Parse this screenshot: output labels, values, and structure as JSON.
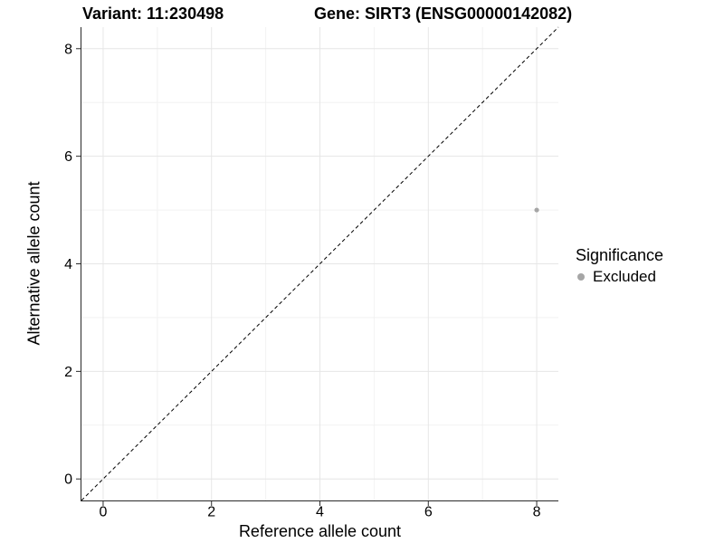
{
  "chart_data": {
    "type": "scatter",
    "title_left": "Variant: 11:230498",
    "title_right": "Gene: SIRT3 (ENSG00000142082)",
    "xlabel": "Reference allele count",
    "ylabel": "Alternative allele count",
    "xlim": [
      -0.4,
      8.4
    ],
    "ylim": [
      -0.4,
      8.4
    ],
    "xticks": [
      0,
      2,
      4,
      6,
      8
    ],
    "yticks": [
      0,
      2,
      4,
      6,
      8
    ],
    "minor_xticks": [
      1,
      3,
      5,
      7
    ],
    "minor_yticks": [
      1,
      3,
      5,
      7
    ],
    "grid": true,
    "reference_line": {
      "kind": "identity",
      "style": "dashed",
      "color": "#000000"
    },
    "points": [
      {
        "x": 8,
        "y": 5,
        "significance": "Excluded",
        "color": "#a6a6a6",
        "radius": 2.6
      }
    ],
    "legend": {
      "title": "Significance",
      "position": "right",
      "items": [
        {
          "label": "Excluded",
          "color": "#a6a6a6",
          "icon": "point-icon"
        }
      ]
    },
    "colors": {
      "major_grid": "#e6e6e6",
      "minor_grid": "#f2f2f2",
      "axis_line": "#2a2a2a",
      "tick_text": "#000000"
    },
    "tick_font_px": 16
  }
}
